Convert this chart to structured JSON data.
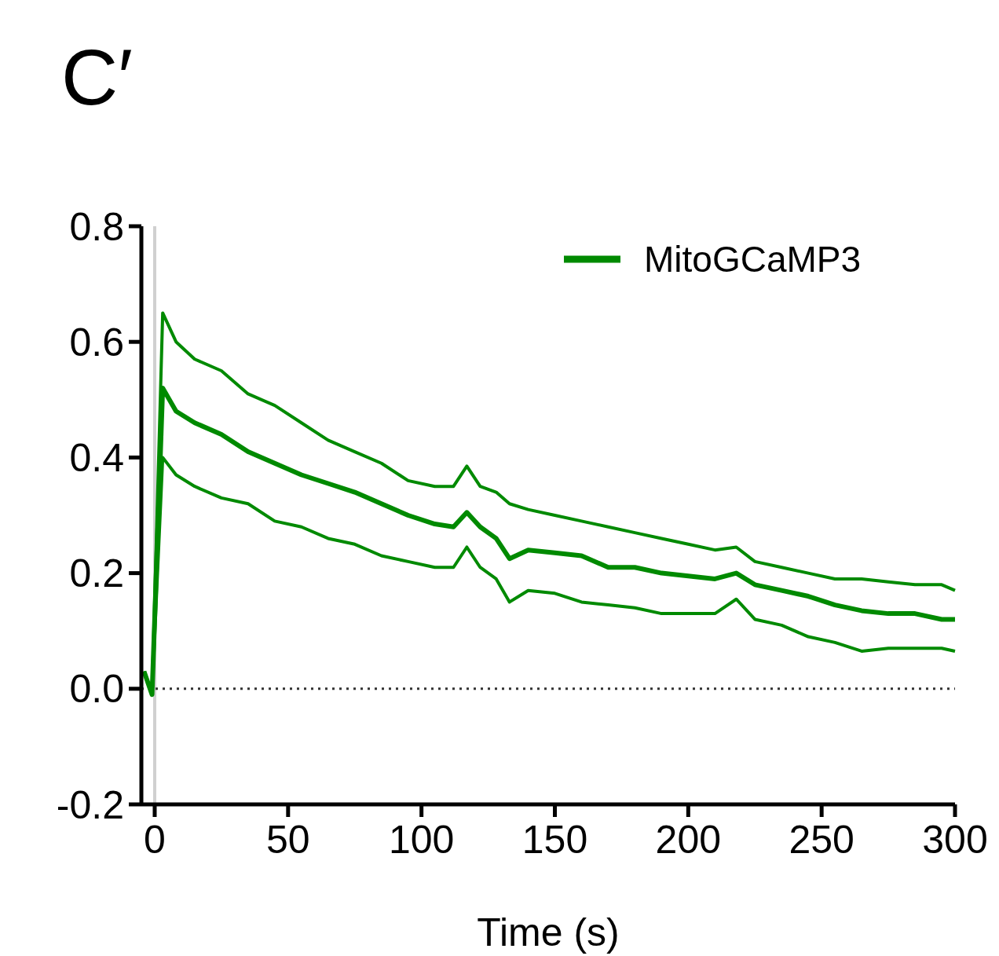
{
  "chart_data": {
    "type": "line",
    "title": "C′",
    "xlabel": "Time (s)",
    "x": [
      -4,
      -1,
      3,
      8,
      15,
      25,
      35,
      45,
      55,
      65,
      75,
      85,
      95,
      105,
      112,
      117,
      122,
      128,
      133,
      140,
      150,
      160,
      170,
      180,
      190,
      200,
      210,
      218,
      225,
      235,
      245,
      255,
      265,
      275,
      285,
      295,
      300
    ],
    "series": [
      {
        "name": "MitoGCaMP3",
        "color": "#008a00",
        "values": [
          0.03,
          -0.01,
          0.52,
          0.48,
          0.46,
          0.44,
          0.41,
          0.39,
          0.37,
          0.355,
          0.34,
          0.32,
          0.3,
          0.285,
          0.28,
          0.305,
          0.28,
          0.26,
          0.225,
          0.24,
          0.235,
          0.23,
          0.21,
          0.21,
          0.2,
          0.195,
          0.19,
          0.2,
          0.18,
          0.17,
          0.16,
          0.145,
          0.135,
          0.13,
          0.13,
          0.12,
          0.12
        ]
      },
      {
        "color": "#008a00",
        "values": [
          0.03,
          -0.01,
          0.65,
          0.6,
          0.57,
          0.55,
          0.51,
          0.49,
          0.46,
          0.43,
          0.41,
          0.39,
          0.36,
          0.35,
          0.35,
          0.385,
          0.35,
          0.34,
          0.32,
          0.31,
          0.3,
          0.29,
          0.28,
          0.27,
          0.26,
          0.25,
          0.24,
          0.245,
          0.22,
          0.21,
          0.2,
          0.19,
          0.19,
          0.185,
          0.18,
          0.18,
          0.17
        ]
      },
      {
        "color": "#008a00",
        "values": [
          0.03,
          -0.01,
          0.4,
          0.37,
          0.35,
          0.33,
          0.32,
          0.29,
          0.28,
          0.26,
          0.25,
          0.23,
          0.22,
          0.21,
          0.21,
          0.245,
          0.21,
          0.19,
          0.15,
          0.17,
          0.165,
          0.15,
          0.145,
          0.14,
          0.13,
          0.13,
          0.13,
          0.155,
          0.12,
          0.11,
          0.09,
          0.08,
          0.065,
          0.07,
          0.07,
          0.07,
          0.065
        ]
      }
    ],
    "xlim": [
      -5,
      300
    ],
    "xticks": [
      0,
      50,
      100,
      150,
      200,
      250,
      300
    ],
    "ylim": [
      -0.2,
      0.8
    ],
    "yticks": [
      -0.2,
      {
        "value": 0,
        "label": "0.0"
      },
      0.2,
      0.4,
      0.6,
      0.8
    ],
    "ref_lines": [
      {
        "axis": "x",
        "value": 0,
        "color": "#d0d0d0",
        "line_style": "solid"
      },
      {
        "axis": "y",
        "value": 0,
        "color": "#333333",
        "line_style": "dotted"
      }
    ],
    "legend": "top right",
    "grid": false,
    "line_style": "solid",
    "marker": "none"
  }
}
